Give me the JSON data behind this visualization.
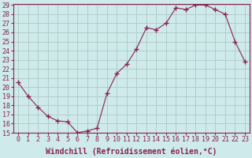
{
  "x": [
    0,
    1,
    2,
    3,
    4,
    5,
    6,
    7,
    8,
    9,
    10,
    11,
    12,
    13,
    14,
    15,
    16,
    17,
    18,
    19,
    20,
    21,
    22,
    23
  ],
  "y": [
    20.5,
    19.0,
    17.8,
    16.8,
    16.3,
    16.2,
    15.0,
    15.2,
    15.5,
    19.3,
    21.5,
    22.5,
    24.2,
    26.5,
    26.3,
    27.0,
    28.7,
    28.5,
    29.0,
    29.0,
    28.5,
    28.0,
    25.0,
    22.8
  ],
  "xlim": [
    -0.5,
    23.5
  ],
  "ylim": [
    15,
    29
  ],
  "xticks": [
    0,
    1,
    2,
    3,
    4,
    5,
    6,
    7,
    8,
    9,
    10,
    11,
    12,
    13,
    14,
    15,
    16,
    17,
    18,
    19,
    20,
    21,
    22,
    23
  ],
  "yticks": [
    15,
    16,
    17,
    18,
    19,
    20,
    21,
    22,
    23,
    24,
    25,
    26,
    27,
    28,
    29
  ],
  "xlabel": "Windchill (Refroidissement éolien,°C)",
  "line_color": "#882255",
  "marker": "+",
  "marker_size": 4,
  "bg_color": "#ceeaea",
  "grid_color": "#b0c8c8",
  "tick_label_fontsize": 6,
  "xlabel_fontsize": 7
}
